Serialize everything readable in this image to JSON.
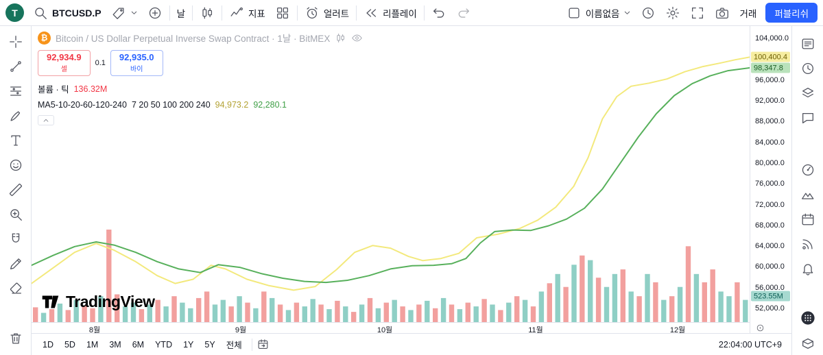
{
  "topbar": {
    "avatar_letter": "T",
    "symbol": "BTCUSD.P",
    "interval_label": "날",
    "indicators_label": "지표",
    "alert_label": "얼러트",
    "replay_label": "리플레이",
    "layout_name": "이름없음",
    "trade_label": "거래",
    "publish_label": "퍼블리쉬"
  },
  "left_toolbar": {
    "tools": [
      "crosshair-icon",
      "trendline-icon",
      "fibonacci-icon",
      "brush-icon",
      "text-icon",
      "emoji-icon",
      "ruler-icon",
      "zoom-in-icon",
      "magnet-icon",
      "pencil-icon",
      "eraser-icon"
    ],
    "bottom_tools": [
      "trash-icon"
    ]
  },
  "right_toolbar": {
    "top_tools": [
      "watchlist-icon",
      "alert-clock-icon",
      "layers-icon",
      "chat-icon"
    ],
    "mid_tools": [
      "gauge-icon",
      "ideas-icon",
      "calendar-icon",
      "broadcast-icon",
      "bell-icon"
    ],
    "bottom_tools": [
      "apps-grid-icon",
      "box-icon"
    ]
  },
  "legend": {
    "symbol_title": "Bitcoin / US Dollar Perpetual Inverse Swap Contract · 1날 · BitMEX",
    "sell": {
      "price": "92,934.9",
      "label": "셀"
    },
    "spread": "0.1",
    "buy": {
      "price": "92,935.0",
      "label": "바이"
    },
    "volume_label": "볼륨 · 틱",
    "volume_value": "136.32M",
    "ma_label": "MA5-10-20-60-120-240",
    "ma_params": "7 20 50 100 200 240",
    "ma_value_yellow": "94,973.2",
    "ma_value_green": "92,280.1"
  },
  "watermark_text": "TradingView",
  "bottom_bar": {
    "timeframes": [
      "1D",
      "5D",
      "1M",
      "3M",
      "6M",
      "YTD",
      "1Y",
      "5Y",
      "전체"
    ],
    "clock": "22:04:00 UTC+9"
  },
  "price_scale": {
    "ticks": [
      {
        "label": "104,000.0",
        "value": 104000
      },
      {
        "label": "96,000.0",
        "value": 96000
      },
      {
        "label": "92,000.0",
        "value": 92000
      },
      {
        "label": "88,000.0",
        "value": 88000
      },
      {
        "label": "84,000.0",
        "value": 84000
      },
      {
        "label": "80,000.0",
        "value": 80000
      },
      {
        "label": "76,000.0",
        "value": 76000
      },
      {
        "label": "72,000.0",
        "value": 72000
      },
      {
        "label": "68,000.0",
        "value": 68000
      },
      {
        "label": "64,000.0",
        "value": 64000
      },
      {
        "label": "60,000.0",
        "value": 60000
      },
      {
        "label": "56,000.0",
        "value": 56000
      },
      {
        "label": "52,000.0",
        "value": 52000
      }
    ],
    "highlights": [
      {
        "name": "ma-yellow-price",
        "label": "100,400.4",
        "value": 100400,
        "bg": "#f6eda0",
        "fg": "#6b5d00"
      },
      {
        "name": "ma-green-price",
        "label": "98,347.8",
        "value": 98348,
        "bg": "#b9e2bb",
        "fg": "#1d5e26"
      },
      {
        "name": "volume-value",
        "label": "523.55M",
        "y_frac": 0.912,
        "bg": "#a6d9d0",
        "fg": "#0b5e55"
      }
    ]
  },
  "chart_data": {
    "type": "line",
    "title": "Bitcoin / US Dollar Perpetual Inverse Swap Contract · 1날 · BitMEX",
    "legend_position": "top-left",
    "grid": false,
    "ylim": [
      49350,
      106400
    ],
    "y_ticks": [
      104000,
      100000,
      96000,
      92000,
      88000,
      84000,
      80000,
      76000,
      72000,
      68000,
      64000,
      60000,
      56000,
      52000
    ],
    "x_axis_labels": [
      {
        "label": "8월",
        "f": 0.088
      },
      {
        "label": "9월",
        "f": 0.291
      },
      {
        "label": "10월",
        "f": 0.492
      },
      {
        "label": "11월",
        "f": 0.702
      },
      {
        "label": "12월",
        "f": 0.9
      }
    ],
    "series": [
      {
        "name": "MA fast",
        "color": "#f3e97c",
        "last_value": 100400.4,
        "points": [
          [
            0,
            56800
          ],
          [
            0.03,
            59800
          ],
          [
            0.06,
            62800
          ],
          [
            0.09,
            64500
          ],
          [
            0.115,
            63200
          ],
          [
            0.145,
            61000
          ],
          [
            0.175,
            58300
          ],
          [
            0.2,
            56800
          ],
          [
            0.225,
            57600
          ],
          [
            0.25,
            60300
          ],
          [
            0.27,
            59600
          ],
          [
            0.3,
            57600
          ],
          [
            0.33,
            56400
          ],
          [
            0.365,
            55500
          ],
          [
            0.395,
            56200
          ],
          [
            0.425,
            59500
          ],
          [
            0.45,
            62800
          ],
          [
            0.475,
            64100
          ],
          [
            0.5,
            63600
          ],
          [
            0.525,
            62000
          ],
          [
            0.545,
            61200
          ],
          [
            0.57,
            61600
          ],
          [
            0.595,
            62600
          ],
          [
            0.62,
            65600
          ],
          [
            0.65,
            66300
          ],
          [
            0.68,
            67400
          ],
          [
            0.705,
            69000
          ],
          [
            0.73,
            71500
          ],
          [
            0.755,
            75500
          ],
          [
            0.775,
            81000
          ],
          [
            0.795,
            88500
          ],
          [
            0.815,
            92800
          ],
          [
            0.835,
            94800
          ],
          [
            0.86,
            95400
          ],
          [
            0.885,
            96200
          ],
          [
            0.91,
            97600
          ],
          [
            0.935,
            98600
          ],
          [
            0.96,
            99300
          ],
          [
            0.98,
            99900
          ],
          [
            1,
            100400
          ]
        ]
      },
      {
        "name": "MA slow",
        "color": "#57b05b",
        "last_value": 98347.8,
        "points": [
          [
            0,
            60300
          ],
          [
            0.03,
            62200
          ],
          [
            0.06,
            63900
          ],
          [
            0.09,
            64800
          ],
          [
            0.115,
            64200
          ],
          [
            0.145,
            62800
          ],
          [
            0.175,
            61000
          ],
          [
            0.205,
            59600
          ],
          [
            0.235,
            58900
          ],
          [
            0.26,
            60400
          ],
          [
            0.29,
            59900
          ],
          [
            0.32,
            58700
          ],
          [
            0.35,
            57800
          ],
          [
            0.38,
            57200
          ],
          [
            0.41,
            57000
          ],
          [
            0.44,
            57400
          ],
          [
            0.47,
            58300
          ],
          [
            0.5,
            59600
          ],
          [
            0.53,
            60200
          ],
          [
            0.56,
            60300
          ],
          [
            0.585,
            60600
          ],
          [
            0.605,
            61600
          ],
          [
            0.625,
            64600
          ],
          [
            0.645,
            66800
          ],
          [
            0.67,
            67100
          ],
          [
            0.695,
            67000
          ],
          [
            0.72,
            67900
          ],
          [
            0.745,
            69200
          ],
          [
            0.77,
            71300
          ],
          [
            0.795,
            75000
          ],
          [
            0.82,
            80000
          ],
          [
            0.845,
            85000
          ],
          [
            0.87,
            89500
          ],
          [
            0.895,
            93000
          ],
          [
            0.92,
            95300
          ],
          [
            0.945,
            96800
          ],
          [
            0.97,
            97800
          ],
          [
            1,
            98348
          ]
        ]
      }
    ],
    "volume": {
      "last_label": "523.55M",
      "up_color": "#8fcfc5",
      "down_color": "#f2a09e",
      "bars": [
        [
          0.16,
          0
        ],
        [
          0.1,
          1
        ],
        [
          0.14,
          0
        ],
        [
          0.2,
          1
        ],
        [
          0.13,
          0
        ],
        [
          0.24,
          1
        ],
        [
          0.18,
          0
        ],
        [
          0.15,
          0
        ],
        [
          0.28,
          1
        ],
        [
          1.0,
          0
        ],
        [
          0.3,
          0
        ],
        [
          0.17,
          1
        ],
        [
          0.21,
          1
        ],
        [
          0.14,
          0
        ],
        [
          0.19,
          1
        ],
        [
          0.24,
          0
        ],
        [
          0.17,
          1
        ],
        [
          0.28,
          0
        ],
        [
          0.21,
          1
        ],
        [
          0.15,
          1
        ],
        [
          0.26,
          0
        ],
        [
          0.33,
          0
        ],
        [
          0.19,
          1
        ],
        [
          0.24,
          1
        ],
        [
          0.17,
          0
        ],
        [
          0.28,
          1
        ],
        [
          0.21,
          0
        ],
        [
          0.15,
          1
        ],
        [
          0.33,
          0
        ],
        [
          0.26,
          1
        ],
        [
          0.19,
          0
        ],
        [
          0.13,
          1
        ],
        [
          0.21,
          0
        ],
        [
          0.17,
          1
        ],
        [
          0.25,
          1
        ],
        [
          0.19,
          0
        ],
        [
          0.14,
          1
        ],
        [
          0.23,
          0
        ],
        [
          0.17,
          1
        ],
        [
          0.11,
          0
        ],
        [
          0.19,
          1
        ],
        [
          0.26,
          0
        ],
        [
          0.15,
          1
        ],
        [
          0.21,
          0
        ],
        [
          0.24,
          1
        ],
        [
          0.17,
          0
        ],
        [
          0.13,
          1
        ],
        [
          0.19,
          0
        ],
        [
          0.23,
          1
        ],
        [
          0.15,
          0
        ],
        [
          0.26,
          1
        ],
        [
          0.19,
          0
        ],
        [
          0.14,
          1
        ],
        [
          0.21,
          0
        ],
        [
          0.17,
          1
        ],
        [
          0.25,
          0
        ],
        [
          0.19,
          1
        ],
        [
          0.13,
          0
        ],
        [
          0.21,
          1
        ],
        [
          0.28,
          0
        ],
        [
          0.24,
          1
        ],
        [
          0.17,
          0
        ],
        [
          0.33,
          1
        ],
        [
          0.42,
          0
        ],
        [
          0.52,
          1
        ],
        [
          0.38,
          0
        ],
        [
          0.62,
          1
        ],
        [
          0.72,
          0
        ],
        [
          0.67,
          1
        ],
        [
          0.48,
          0
        ],
        [
          0.38,
          1
        ],
        [
          0.52,
          1
        ],
        [
          0.57,
          0
        ],
        [
          0.33,
          1
        ],
        [
          0.28,
          0
        ],
        [
          0.52,
          1
        ],
        [
          0.43,
          0
        ],
        [
          0.24,
          1
        ],
        [
          0.28,
          0
        ],
        [
          0.38,
          1
        ],
        [
          0.82,
          0
        ],
        [
          0.52,
          1
        ],
        [
          0.43,
          0
        ],
        [
          0.57,
          0
        ],
        [
          0.33,
          1
        ],
        [
          0.28,
          1
        ],
        [
          0.43,
          0
        ],
        [
          0.24,
          1
        ]
      ]
    }
  }
}
